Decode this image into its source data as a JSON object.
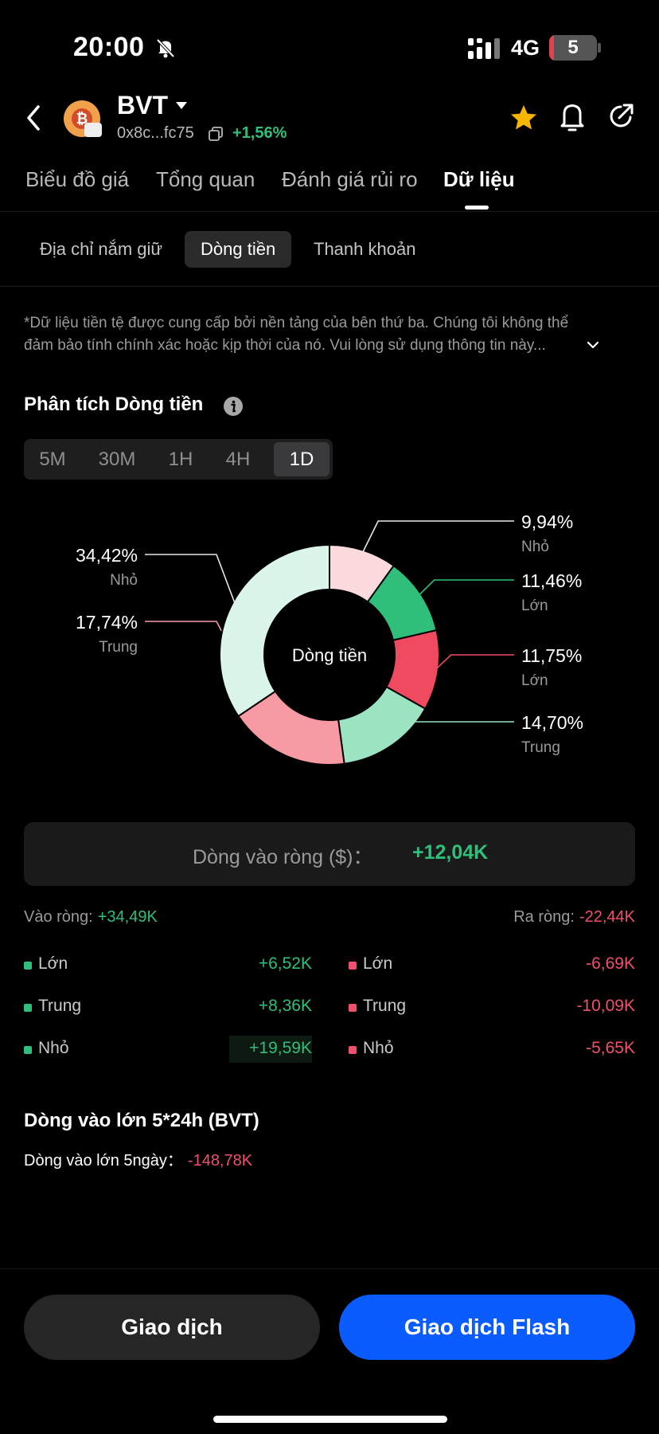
{
  "status": {
    "time": "20:00",
    "network": "4G",
    "battery": "5"
  },
  "header": {
    "token_name": "BVT",
    "address": "0x8c...fc75",
    "change": "+1,56%"
  },
  "tabs": [
    {
      "label": "Biểu đồ giá"
    },
    {
      "label": "Tổng quan"
    },
    {
      "label": "Đánh giá rủi ro"
    },
    {
      "label": "Dữ liệu"
    }
  ],
  "subtabs": [
    {
      "label": "Địa chỉ nắm giữ"
    },
    {
      "label": "Dòng tiền"
    },
    {
      "label": "Thanh khoản"
    }
  ],
  "disclaimer": {
    "line1": "*Dữ liệu tiền tệ được cung cấp bởi nền tảng của bên thứ ba. Chúng tôi không thể",
    "line2": "đảm bảo tính chính xác hoặc kịp thời của nó. Vui lòng sử dụng thông tin này..."
  },
  "analysis": {
    "title": "Phân tích Dòng tiền",
    "timeframes": [
      "5M",
      "30M",
      "1H",
      "4H",
      "1D"
    ],
    "active_timeframe": "1D"
  },
  "chart_data": {
    "type": "pie",
    "title": "Dòng tiền",
    "slices": [
      {
        "label": "Nhỏ",
        "percent_text": "9,94%",
        "value": 9.94,
        "color": "#fbdadd"
      },
      {
        "label": "Lớn",
        "percent_text": "11,46%",
        "value": 11.46,
        "color": "#2fbf7a"
      },
      {
        "label": "Lớn",
        "percent_text": "11,75%",
        "value": 11.75,
        "color": "#ef4a5f"
      },
      {
        "label": "Trung",
        "percent_text": "14,70%",
        "value": 14.7,
        "color": "#9be3c1"
      },
      {
        "label": "Trung",
        "percent_text": "17,74%",
        "value": 17.74,
        "color": "#f79aa4"
      },
      {
        "label": "Nhỏ",
        "percent_text": "34,42%",
        "value": 34.42,
        "color": "#dcf5ea"
      }
    ]
  },
  "net_inflow": {
    "label": "Dòng vào ròng ($)：",
    "value": "+12,04K"
  },
  "flows": {
    "inflow_label": "Vào ròng:",
    "inflow_total": "+34,49K",
    "outflow_label": "Ra ròng:",
    "outflow_total": "-22,44K",
    "inflow_rows": [
      {
        "name": "Lớn",
        "amount": "+6,52K"
      },
      {
        "name": "Trung",
        "amount": "+8,36K"
      },
      {
        "name": "Nhỏ",
        "amount": "+19,59K"
      }
    ],
    "outflow_rows": [
      {
        "name": "Lớn",
        "amount": "-6,69K"
      },
      {
        "name": "Trung",
        "amount": "-10,09K"
      },
      {
        "name": "Nhỏ",
        "amount": "-5,65K"
      }
    ]
  },
  "big_inflow": {
    "title": "Dòng vào lớn 5*24h (BVT)",
    "label": "Dòng vào lớn 5ngày：",
    "value": "-148,78K"
  },
  "actions": {
    "trade": "Giao dịch",
    "flash": "Giao dịch Flash"
  },
  "colors": {
    "green": "#2fbf7a",
    "red": "#f0506e",
    "accent_blue": "#0a5cff"
  }
}
